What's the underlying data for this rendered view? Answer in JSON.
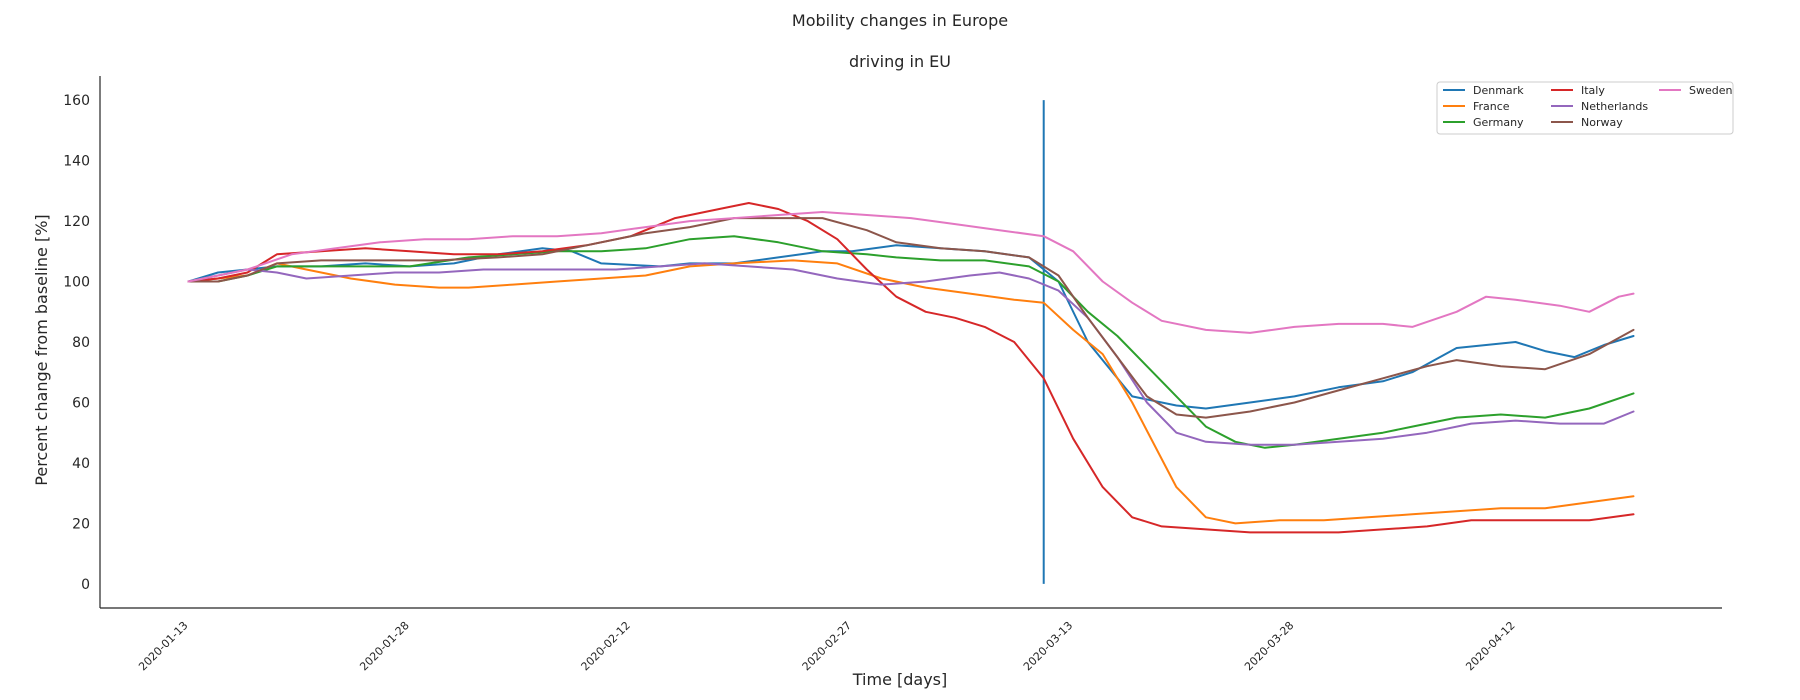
{
  "chart_data": {
    "type": "line",
    "title": "Mobility changes in Europe",
    "subtitle": "driving in EU",
    "xlabel": "Time [days]",
    "ylabel": "Percent change from baseline [%]",
    "x_start": "2020-01-13",
    "x_end": "2020-04-20",
    "xlim": [
      "2020-01-07",
      "2020-04-26"
    ],
    "ylim": [
      -8,
      168
    ],
    "yticks": [
      0,
      20,
      40,
      60,
      80,
      100,
      120,
      140,
      160
    ],
    "xticks": [
      "2020-01-13",
      "2020-01-28",
      "2020-02-12",
      "2020-02-27",
      "2020-03-13",
      "2020-03-28",
      "2020-04-12"
    ],
    "grid": false,
    "legend": {
      "placement": "top-right",
      "columns": 3
    },
    "vline": {
      "x": "2020-03-11",
      "y_from": 0,
      "y_to": 160,
      "color": "#1f77b4"
    },
    "series": [
      {
        "name": "Denmark",
        "color": "#1f77b4",
        "points": [
          [
            "2020-01-13",
            100
          ],
          [
            "2020-01-15",
            103
          ],
          [
            "2020-01-17",
            104
          ],
          [
            "2020-01-19",
            105
          ],
          [
            "2020-01-22",
            105
          ],
          [
            "2020-01-25",
            106
          ],
          [
            "2020-01-28",
            105
          ],
          [
            "2020-01-31",
            106
          ],
          [
            "2020-02-03",
            109
          ],
          [
            "2020-02-06",
            111
          ],
          [
            "2020-02-08",
            110
          ],
          [
            "2020-02-10",
            106
          ],
          [
            "2020-02-14",
            105
          ],
          [
            "2020-02-16",
            106
          ],
          [
            "2020-02-19",
            106
          ],
          [
            "2020-02-22",
            108
          ],
          [
            "2020-02-25",
            110
          ],
          [
            "2020-02-27",
            110
          ],
          [
            "2020-03-01",
            112
          ],
          [
            "2020-03-04",
            111
          ],
          [
            "2020-03-07",
            110
          ],
          [
            "2020-03-10",
            108
          ],
          [
            "2020-03-12",
            100
          ],
          [
            "2020-03-14",
            80
          ],
          [
            "2020-03-17",
            62
          ],
          [
            "2020-03-20",
            59
          ],
          [
            "2020-03-22",
            58
          ],
          [
            "2020-03-25",
            60
          ],
          [
            "2020-03-28",
            62
          ],
          [
            "2020-03-31",
            65
          ],
          [
            "2020-04-03",
            67
          ],
          [
            "2020-04-05",
            70
          ],
          [
            "2020-04-08",
            78
          ],
          [
            "2020-04-10",
            79
          ],
          [
            "2020-04-12",
            80
          ],
          [
            "2020-04-14",
            77
          ],
          [
            "2020-04-16",
            75
          ],
          [
            "2020-04-18",
            79
          ],
          [
            "2020-04-20",
            82
          ]
        ]
      },
      {
        "name": "France",
        "color": "#ff7f0e",
        "points": [
          [
            "2020-01-13",
            100
          ],
          [
            "2020-01-15",
            101
          ],
          [
            "2020-01-17",
            102
          ],
          [
            "2020-01-19",
            106
          ],
          [
            "2020-01-21",
            104
          ],
          [
            "2020-01-24",
            101
          ],
          [
            "2020-01-27",
            99
          ],
          [
            "2020-01-30",
            98
          ],
          [
            "2020-02-01",
            98
          ],
          [
            "2020-02-04",
            99
          ],
          [
            "2020-02-07",
            100
          ],
          [
            "2020-02-10",
            101
          ],
          [
            "2020-02-13",
            102
          ],
          [
            "2020-02-16",
            105
          ],
          [
            "2020-02-19",
            106
          ],
          [
            "2020-02-23",
            107
          ],
          [
            "2020-02-26",
            106
          ],
          [
            "2020-02-29",
            101
          ],
          [
            "2020-03-03",
            98
          ],
          [
            "2020-03-06",
            96
          ],
          [
            "2020-03-09",
            94
          ],
          [
            "2020-03-11",
            93
          ],
          [
            "2020-03-13",
            84
          ],
          [
            "2020-03-15",
            76
          ],
          [
            "2020-03-17",
            60
          ],
          [
            "2020-03-20",
            32
          ],
          [
            "2020-03-22",
            22
          ],
          [
            "2020-03-24",
            20
          ],
          [
            "2020-03-27",
            21
          ],
          [
            "2020-03-30",
            21
          ],
          [
            "2020-04-02",
            22
          ],
          [
            "2020-04-05",
            23
          ],
          [
            "2020-04-08",
            24
          ],
          [
            "2020-04-11",
            25
          ],
          [
            "2020-04-14",
            25
          ],
          [
            "2020-04-17",
            27
          ],
          [
            "2020-04-20",
            29
          ]
        ]
      },
      {
        "name": "Germany",
        "color": "#2ca02c",
        "points": [
          [
            "2020-01-13",
            100
          ],
          [
            "2020-01-15",
            100
          ],
          [
            "2020-01-17",
            102
          ],
          [
            "2020-01-19",
            105
          ],
          [
            "2020-01-23",
            105
          ],
          [
            "2020-01-28",
            105
          ],
          [
            "2020-02-01",
            108
          ],
          [
            "2020-02-04",
            109
          ],
          [
            "2020-02-07",
            110
          ],
          [
            "2020-02-10",
            110
          ],
          [
            "2020-02-13",
            111
          ],
          [
            "2020-02-16",
            114
          ],
          [
            "2020-02-19",
            115
          ],
          [
            "2020-02-22",
            113
          ],
          [
            "2020-02-25",
            110
          ],
          [
            "2020-02-28",
            109
          ],
          [
            "2020-03-01",
            108
          ],
          [
            "2020-03-04",
            107
          ],
          [
            "2020-03-07",
            107
          ],
          [
            "2020-03-10",
            105
          ],
          [
            "2020-03-12",
            100
          ],
          [
            "2020-03-14",
            90
          ],
          [
            "2020-03-16",
            82
          ],
          [
            "2020-03-18",
            72
          ],
          [
            "2020-03-20",
            62
          ],
          [
            "2020-03-22",
            52
          ],
          [
            "2020-03-24",
            47
          ],
          [
            "2020-03-26",
            45
          ],
          [
            "2020-03-28",
            46
          ],
          [
            "2020-03-31",
            48
          ],
          [
            "2020-04-03",
            50
          ],
          [
            "2020-04-05",
            52
          ],
          [
            "2020-04-08",
            55
          ],
          [
            "2020-04-11",
            56
          ],
          [
            "2020-04-14",
            55
          ],
          [
            "2020-04-17",
            58
          ],
          [
            "2020-04-20",
            63
          ]
        ]
      },
      {
        "name": "Italy",
        "color": "#d62728",
        "points": [
          [
            "2020-01-13",
            100
          ],
          [
            "2020-01-15",
            101
          ],
          [
            "2020-01-17",
            103
          ],
          [
            "2020-01-19",
            109
          ],
          [
            "2020-01-22",
            110
          ],
          [
            "2020-01-25",
            111
          ],
          [
            "2020-01-28",
            110
          ],
          [
            "2020-01-31",
            109
          ],
          [
            "2020-02-03",
            109
          ],
          [
            "2020-02-06",
            110
          ],
          [
            "2020-02-09",
            112
          ],
          [
            "2020-02-12",
            115
          ],
          [
            "2020-02-15",
            121
          ],
          [
            "2020-02-18",
            124
          ],
          [
            "2020-02-20",
            126
          ],
          [
            "2020-02-22",
            124
          ],
          [
            "2020-02-24",
            120
          ],
          [
            "2020-02-26",
            114
          ],
          [
            "2020-02-28",
            104
          ],
          [
            "2020-03-01",
            95
          ],
          [
            "2020-03-03",
            90
          ],
          [
            "2020-03-05",
            88
          ],
          [
            "2020-03-07",
            85
          ],
          [
            "2020-03-09",
            80
          ],
          [
            "2020-03-11",
            68
          ],
          [
            "2020-03-13",
            48
          ],
          [
            "2020-03-15",
            32
          ],
          [
            "2020-03-17",
            22
          ],
          [
            "2020-03-19",
            19
          ],
          [
            "2020-03-22",
            18
          ],
          [
            "2020-03-25",
            17
          ],
          [
            "2020-03-28",
            17
          ],
          [
            "2020-03-31",
            17
          ],
          [
            "2020-04-03",
            18
          ],
          [
            "2020-04-06",
            19
          ],
          [
            "2020-04-09",
            21
          ],
          [
            "2020-04-11",
            21
          ],
          [
            "2020-04-14",
            21
          ],
          [
            "2020-04-17",
            21
          ],
          [
            "2020-04-20",
            23
          ]
        ]
      },
      {
        "name": "Netherlands",
        "color": "#9467bd",
        "points": [
          [
            "2020-01-13",
            100
          ],
          [
            "2020-01-15",
            102
          ],
          [
            "2020-01-17",
            104
          ],
          [
            "2020-01-19",
            103
          ],
          [
            "2020-01-21",
            101
          ],
          [
            "2020-01-24",
            102
          ],
          [
            "2020-01-27",
            103
          ],
          [
            "2020-01-30",
            103
          ],
          [
            "2020-02-02",
            104
          ],
          [
            "2020-02-05",
            104
          ],
          [
            "2020-02-08",
            104
          ],
          [
            "2020-02-11",
            104
          ],
          [
            "2020-02-14",
            105
          ],
          [
            "2020-02-17",
            106
          ],
          [
            "2020-02-20",
            105
          ],
          [
            "2020-02-23",
            104
          ],
          [
            "2020-02-26",
            101
          ],
          [
            "2020-02-29",
            99
          ],
          [
            "2020-03-03",
            100
          ],
          [
            "2020-03-06",
            102
          ],
          [
            "2020-03-08",
            103
          ],
          [
            "2020-03-10",
            101
          ],
          [
            "2020-03-12",
            97
          ],
          [
            "2020-03-14",
            88
          ],
          [
            "2020-03-16",
            75
          ],
          [
            "2020-03-18",
            60
          ],
          [
            "2020-03-20",
            50
          ],
          [
            "2020-03-22",
            47
          ],
          [
            "2020-03-25",
            46
          ],
          [
            "2020-03-28",
            46
          ],
          [
            "2020-03-31",
            47
          ],
          [
            "2020-04-03",
            48
          ],
          [
            "2020-04-06",
            50
          ],
          [
            "2020-04-09",
            53
          ],
          [
            "2020-04-12",
            54
          ],
          [
            "2020-04-15",
            53
          ],
          [
            "2020-04-18",
            53
          ],
          [
            "2020-04-20",
            57
          ]
        ]
      },
      {
        "name": "Norway",
        "color": "#8c564b",
        "points": [
          [
            "2020-01-13",
            100
          ],
          [
            "2020-01-15",
            100
          ],
          [
            "2020-01-17",
            102
          ],
          [
            "2020-01-19",
            106
          ],
          [
            "2020-01-22",
            107
          ],
          [
            "2020-01-26",
            107
          ],
          [
            "2020-01-30",
            107
          ],
          [
            "2020-02-03",
            108
          ],
          [
            "2020-02-06",
            109
          ],
          [
            "2020-02-09",
            112
          ],
          [
            "2020-02-13",
            116
          ],
          [
            "2020-02-16",
            118
          ],
          [
            "2020-02-19",
            121
          ],
          [
            "2020-02-22",
            121
          ],
          [
            "2020-02-25",
            121
          ],
          [
            "2020-02-28",
            117
          ],
          [
            "2020-03-01",
            113
          ],
          [
            "2020-03-04",
            111
          ],
          [
            "2020-03-07",
            110
          ],
          [
            "2020-03-10",
            108
          ],
          [
            "2020-03-12",
            102
          ],
          [
            "2020-03-14",
            88
          ],
          [
            "2020-03-16",
            75
          ],
          [
            "2020-03-18",
            62
          ],
          [
            "2020-03-20",
            56
          ],
          [
            "2020-03-22",
            55
          ],
          [
            "2020-03-25",
            57
          ],
          [
            "2020-03-28",
            60
          ],
          [
            "2020-03-31",
            64
          ],
          [
            "2020-04-03",
            68
          ],
          [
            "2020-04-06",
            72
          ],
          [
            "2020-04-08",
            74
          ],
          [
            "2020-04-11",
            72
          ],
          [
            "2020-04-14",
            71
          ],
          [
            "2020-04-17",
            76
          ],
          [
            "2020-04-20",
            84
          ]
        ]
      },
      {
        "name": "Sweden",
        "color": "#e377c2",
        "points": [
          [
            "2020-01-13",
            100
          ],
          [
            "2020-01-15",
            102
          ],
          [
            "2020-01-17",
            104
          ],
          [
            "2020-01-20",
            109
          ],
          [
            "2020-01-23",
            111
          ],
          [
            "2020-01-26",
            113
          ],
          [
            "2020-01-29",
            114
          ],
          [
            "2020-02-01",
            114
          ],
          [
            "2020-02-04",
            115
          ],
          [
            "2020-02-07",
            115
          ],
          [
            "2020-02-10",
            116
          ],
          [
            "2020-02-13",
            118
          ],
          [
            "2020-02-16",
            120
          ],
          [
            "2020-02-19",
            121
          ],
          [
            "2020-02-22",
            122
          ],
          [
            "2020-02-25",
            123
          ],
          [
            "2020-02-28",
            122
          ],
          [
            "2020-03-02",
            121
          ],
          [
            "2020-03-05",
            119
          ],
          [
            "2020-03-08",
            117
          ],
          [
            "2020-03-11",
            115
          ],
          [
            "2020-03-13",
            110
          ],
          [
            "2020-03-15",
            100
          ],
          [
            "2020-03-17",
            93
          ],
          [
            "2020-03-19",
            87
          ],
          [
            "2020-03-22",
            84
          ],
          [
            "2020-03-25",
            83
          ],
          [
            "2020-03-28",
            85
          ],
          [
            "2020-03-31",
            86
          ],
          [
            "2020-04-03",
            86
          ],
          [
            "2020-04-05",
            85
          ],
          [
            "2020-04-08",
            90
          ],
          [
            "2020-04-10",
            95
          ],
          [
            "2020-04-12",
            94
          ],
          [
            "2020-04-15",
            92
          ],
          [
            "2020-04-17",
            90
          ],
          [
            "2020-04-19",
            95
          ],
          [
            "2020-04-20",
            96
          ]
        ]
      }
    ]
  }
}
